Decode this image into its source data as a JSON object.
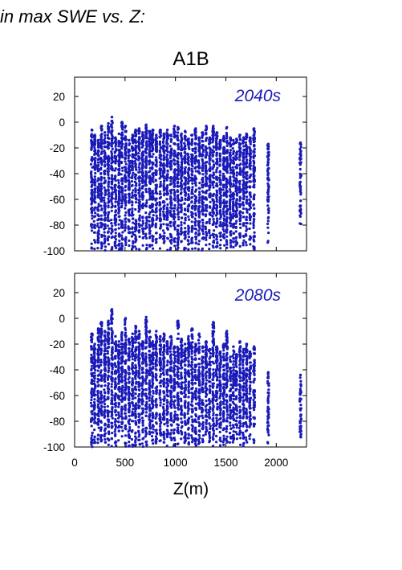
{
  "heading": "in max SWE vs. Z:",
  "chart_data": {
    "type": "scatter",
    "scenario": "A1B",
    "xlabel": "Z(m)",
    "xlim": [
      0,
      2300
    ],
    "ylim": [
      -100,
      35
    ],
    "x_ticks": [
      0,
      500,
      1000,
      1500,
      2000
    ],
    "y_ticks": [
      20,
      0,
      -20,
      -40,
      -60,
      -80,
      -100
    ],
    "marker_color": "#1a1ab8",
    "grid": false,
    "panels": [
      {
        "label": "2040s",
        "min_y": -100,
        "elevation_columns": [
          {
            "z": 170,
            "max_y": -6
          },
          {
            "z": 200,
            "max_y": -10
          },
          {
            "z": 235,
            "max_y": -14
          },
          {
            "z": 265,
            "max_y": -3
          },
          {
            "z": 300,
            "max_y": -8
          },
          {
            "z": 335,
            "max_y": -1
          },
          {
            "z": 370,
            "max_y": 4
          },
          {
            "z": 405,
            "max_y": -12
          },
          {
            "z": 440,
            "max_y": -9
          },
          {
            "z": 470,
            "max_y": 0
          },
          {
            "z": 505,
            "max_y": -3
          },
          {
            "z": 540,
            "max_y": -14
          },
          {
            "z": 575,
            "max_y": -10
          },
          {
            "z": 605,
            "max_y": -6
          },
          {
            "z": 640,
            "max_y": -5
          },
          {
            "z": 675,
            "max_y": -8
          },
          {
            "z": 710,
            "max_y": -2
          },
          {
            "z": 745,
            "max_y": -7
          },
          {
            "z": 775,
            "max_y": -6
          },
          {
            "z": 810,
            "max_y": -10
          },
          {
            "z": 850,
            "max_y": -6
          },
          {
            "z": 885,
            "max_y": -9
          },
          {
            "z": 920,
            "max_y": -6
          },
          {
            "z": 955,
            "max_y": -10
          },
          {
            "z": 990,
            "max_y": -3
          },
          {
            "z": 1025,
            "max_y": -4
          },
          {
            "z": 1060,
            "max_y": -9
          },
          {
            "z": 1095,
            "max_y": -7
          },
          {
            "z": 1130,
            "max_y": -13
          },
          {
            "z": 1165,
            "max_y": -10
          },
          {
            "z": 1200,
            "max_y": -5
          },
          {
            "z": 1235,
            "max_y": -12
          },
          {
            "z": 1270,
            "max_y": -8
          },
          {
            "z": 1305,
            "max_y": -3
          },
          {
            "z": 1340,
            "max_y": -12
          },
          {
            "z": 1375,
            "max_y": -3
          },
          {
            "z": 1410,
            "max_y": -8
          },
          {
            "z": 1445,
            "max_y": -14
          },
          {
            "z": 1480,
            "max_y": -11
          },
          {
            "z": 1510,
            "max_y": -4
          },
          {
            "z": 1545,
            "max_y": -12
          },
          {
            "z": 1575,
            "max_y": -14
          },
          {
            "z": 1605,
            "max_y": -13
          },
          {
            "z": 1640,
            "max_y": -10
          },
          {
            "z": 1675,
            "max_y": -12
          },
          {
            "z": 1705,
            "max_y": -9
          },
          {
            "z": 1740,
            "max_y": -12
          },
          {
            "z": 1780,
            "max_y": -5
          },
          {
            "z": 1920,
            "max_y": -17,
            "min_y": -96
          },
          {
            "z": 2240,
            "max_y": -16,
            "min_y": -84
          }
        ]
      },
      {
        "label": "2080s",
        "min_y": -100,
        "elevation_columns": [
          {
            "z": 170,
            "max_y": -12
          },
          {
            "z": 200,
            "max_y": -20
          },
          {
            "z": 235,
            "max_y": -8
          },
          {
            "z": 265,
            "max_y": -3
          },
          {
            "z": 300,
            "max_y": -10
          },
          {
            "z": 335,
            "max_y": -2
          },
          {
            "z": 370,
            "max_y": 7
          },
          {
            "z": 405,
            "max_y": -14
          },
          {
            "z": 440,
            "max_y": -18
          },
          {
            "z": 470,
            "max_y": -11
          },
          {
            "z": 505,
            "max_y": 0
          },
          {
            "z": 540,
            "max_y": -16
          },
          {
            "z": 575,
            "max_y": -12
          },
          {
            "z": 605,
            "max_y": -6
          },
          {
            "z": 640,
            "max_y": -10
          },
          {
            "z": 675,
            "max_y": -18
          },
          {
            "z": 710,
            "max_y": 1
          },
          {
            "z": 745,
            "max_y": -10
          },
          {
            "z": 775,
            "max_y": -18
          },
          {
            "z": 810,
            "max_y": -10
          },
          {
            "z": 850,
            "max_y": -14
          },
          {
            "z": 885,
            "max_y": -12
          },
          {
            "z": 920,
            "max_y": -18
          },
          {
            "z": 955,
            "max_y": -14
          },
          {
            "z": 990,
            "max_y": -22
          },
          {
            "z": 1025,
            "max_y": -2
          },
          {
            "z": 1060,
            "max_y": -16
          },
          {
            "z": 1095,
            "max_y": -20
          },
          {
            "z": 1130,
            "max_y": -14
          },
          {
            "z": 1165,
            "max_y": -8
          },
          {
            "z": 1200,
            "max_y": -20
          },
          {
            "z": 1235,
            "max_y": -12
          },
          {
            "z": 1270,
            "max_y": -22
          },
          {
            "z": 1305,
            "max_y": -18
          },
          {
            "z": 1340,
            "max_y": -24
          },
          {
            "z": 1375,
            "max_y": -3
          },
          {
            "z": 1410,
            "max_y": -22
          },
          {
            "z": 1445,
            "max_y": -26
          },
          {
            "z": 1480,
            "max_y": -20
          },
          {
            "z": 1510,
            "max_y": -10
          },
          {
            "z": 1545,
            "max_y": -30
          },
          {
            "z": 1575,
            "max_y": -22
          },
          {
            "z": 1605,
            "max_y": -28
          },
          {
            "z": 1640,
            "max_y": -18
          },
          {
            "z": 1675,
            "max_y": -24
          },
          {
            "z": 1705,
            "max_y": -20
          },
          {
            "z": 1740,
            "max_y": -26
          },
          {
            "z": 1780,
            "max_y": -22
          },
          {
            "z": 1920,
            "max_y": -42,
            "min_y": -97
          },
          {
            "z": 2240,
            "max_y": -44,
            "min_y": -97
          }
        ]
      }
    ]
  }
}
